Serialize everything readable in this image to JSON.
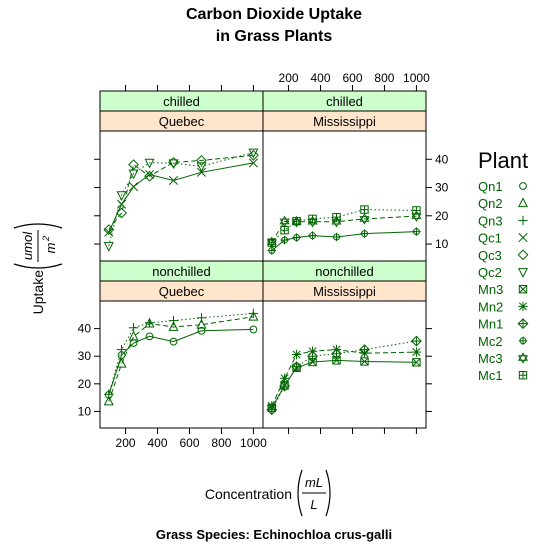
{
  "chart_data": {
    "type": "line",
    "title_line1": "Carbon Dioxide Uptake",
    "title_line2": "in Grass Plants",
    "sub": "Grass Species: Echinochloa crus-galli",
    "xlabel_text": "Concentration",
    "xlabel_num": "mL",
    "xlabel_den": "L",
    "ylabel_text": "Uptake",
    "ylabel_num": "umol",
    "ylabel_den": "m",
    "ylabel_den_sup": "2",
    "xlim": [
      40,
      1060
    ],
    "ylim": [
      4,
      50
    ],
    "x_ticks": [
      200,
      400,
      600,
      800,
      1000
    ],
    "y_ticks": [
      10,
      20,
      30,
      40
    ],
    "x_conc": [
      95,
      175,
      250,
      350,
      500,
      675,
      1000
    ],
    "legend_title": "Plant",
    "legend_color": "#006400",
    "series_color": "#006400",
    "panels": [
      {
        "treatment": "chilled",
        "type": "Quebec",
        "series": [
          {
            "name": "Qc1",
            "symbol": "x",
            "lty": "solid",
            "values": [
              14.2,
              24.1,
              30.3,
              34.6,
              32.5,
              35.4,
              38.7
            ]
          },
          {
            "name": "Qc3",
            "symbol": "diamond",
            "lty": "dashed",
            "values": [
              15.1,
              21.0,
              38.1,
              34.0,
              38.9,
              39.6,
              41.4
            ]
          },
          {
            "name": "Qc2",
            "symbol": "down-triangle",
            "lty": "dotted",
            "values": [
              9.3,
              27.3,
              35.0,
              38.8,
              38.6,
              37.5,
              42.4
            ]
          }
        ]
      },
      {
        "treatment": "chilled",
        "type": "Mississippi",
        "series": [
          {
            "name": "Mc2",
            "symbol": "circle-plus",
            "lty": "solid",
            "values": [
              7.7,
              11.4,
              12.3,
              13.0,
              12.5,
              13.7,
              14.4
            ]
          },
          {
            "name": "Mc3",
            "symbol": "star-of-david",
            "lty": "dashed",
            "values": [
              10.6,
              18.0,
              17.9,
              17.9,
              17.9,
              18.9,
              19.9
            ]
          },
          {
            "name": "Mc1",
            "symbol": "square-plus",
            "lty": "dotted",
            "values": [
              10.5,
              14.9,
              18.1,
              18.9,
              19.5,
              22.2,
              21.9
            ]
          }
        ]
      },
      {
        "treatment": "nonchilled",
        "type": "Quebec",
        "series": [
          {
            "name": "Qn1",
            "symbol": "circle",
            "lty": "solid",
            "values": [
              16.0,
              30.4,
              34.8,
              37.2,
              35.3,
              39.2,
              39.7
            ]
          },
          {
            "name": "Qn2",
            "symbol": "triangle",
            "lty": "dashed",
            "values": [
              13.6,
              27.3,
              37.1,
              41.8,
              40.6,
              41.4,
              44.3
            ]
          },
          {
            "name": "Qn3",
            "symbol": "plus",
            "lty": "dotted",
            "values": [
              16.2,
              32.4,
              40.3,
              42.1,
              42.9,
              43.9,
              45.5
            ]
          }
        ]
      },
      {
        "treatment": "nonchilled",
        "type": "Mississippi",
        "series": [
          {
            "name": "Mn3",
            "symbol": "square-x",
            "lty": "solid",
            "values": [
              11.3,
              19.4,
              25.8,
              27.9,
              28.5,
              28.1,
              27.8
            ]
          },
          {
            "name": "Mn2",
            "symbol": "asterisk",
            "lty": "dashed",
            "values": [
              12.0,
              22.0,
              30.6,
              31.8,
              32.4,
              31.1,
              31.5
            ]
          },
          {
            "name": "Mn1",
            "symbol": "diamond-plus",
            "lty": "dotted",
            "values": [
              10.6,
              19.2,
              26.2,
              30.0,
              30.9,
              32.4,
              35.5
            ]
          }
        ]
      }
    ],
    "legend": [
      {
        "name": "Qn1",
        "symbol": "circle"
      },
      {
        "name": "Qn2",
        "symbol": "triangle"
      },
      {
        "name": "Qn3",
        "symbol": "plus"
      },
      {
        "name": "Qc1",
        "symbol": "x"
      },
      {
        "name": "Qc3",
        "symbol": "diamond"
      },
      {
        "name": "Qc2",
        "symbol": "down-triangle"
      },
      {
        "name": "Mn3",
        "symbol": "square-x"
      },
      {
        "name": "Mn2",
        "symbol": "asterisk"
      },
      {
        "name": "Mn1",
        "symbol": "diamond-plus"
      },
      {
        "name": "Mc2",
        "symbol": "circle-plus"
      },
      {
        "name": "Mc3",
        "symbol": "star-of-david"
      },
      {
        "name": "Mc1",
        "symbol": "square-plus"
      }
    ],
    "strip_treatment_color": "#ccffcc",
    "strip_type_color": "#ffe5cc"
  }
}
